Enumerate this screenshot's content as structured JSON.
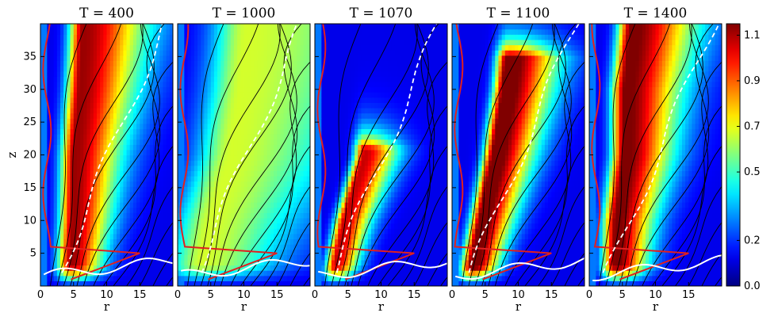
{
  "chart_data": {
    "type": "heatmap",
    "xlabel": "r",
    "ylabel": "z",
    "xlim": [
      0,
      20
    ],
    "ylim": [
      0,
      40
    ],
    "xticks": [
      0,
      5,
      10,
      15
    ],
    "yticks": [
      5,
      10,
      15,
      20,
      25,
      30,
      35
    ],
    "colormap": "jet",
    "colorbar": {
      "range": [
        0.0,
        1.15
      ],
      "ticks": [
        0.0,
        0.2,
        0.5,
        0.7,
        0.9,
        1.1
      ],
      "tick_labels": [
        "0.0",
        "0.2",
        "0.5",
        "0.7",
        "0.9",
        "1.1"
      ]
    },
    "panels": [
      {
        "title": "T = 400",
        "peak": 1.0,
        "core": [
          [
            0,
            4.5
          ],
          [
            10,
            5.0
          ],
          [
            20,
            5.2
          ],
          [
            30,
            6.0
          ],
          [
            40,
            6.5
          ]
        ],
        "width": 1.8,
        "top": 40
      },
      {
        "title": "T = 1000",
        "peak": 0.55,
        "core": [
          [
            0,
            3.0
          ],
          [
            10,
            5.0
          ],
          [
            20,
            8.0
          ],
          [
            30,
            9.5
          ],
          [
            40,
            10.5
          ]
        ],
        "width": 4.5,
        "top": 40
      },
      {
        "title": "T = 1070",
        "peak": 0.95,
        "core": [
          [
            0,
            2.5
          ],
          [
            5,
            3.5
          ],
          [
            10,
            4.5
          ],
          [
            15,
            6.0
          ],
          [
            20,
            7.5
          ]
        ],
        "width": 1.3,
        "top": 21
      },
      {
        "title": "T = 1100",
        "peak": 1.1,
        "core": [
          [
            0,
            2.5
          ],
          [
            10,
            4.5
          ],
          [
            20,
            6.5
          ],
          [
            30,
            8.0
          ],
          [
            35,
            8.5
          ]
        ],
        "width": 1.5,
        "top": 35
      },
      {
        "title": "T = 1400",
        "peak": 1.05,
        "core": [
          [
            0,
            4.0
          ],
          [
            10,
            4.2
          ],
          [
            20,
            5.5
          ],
          [
            30,
            5.5
          ],
          [
            40,
            6.5
          ]
        ],
        "width": 1.8,
        "top": 40
      }
    ]
  },
  "colors": {
    "contour": "#000000",
    "red_contour": "#e02020",
    "white_contour": "#ffffff",
    "background": "#0a3ccf"
  }
}
